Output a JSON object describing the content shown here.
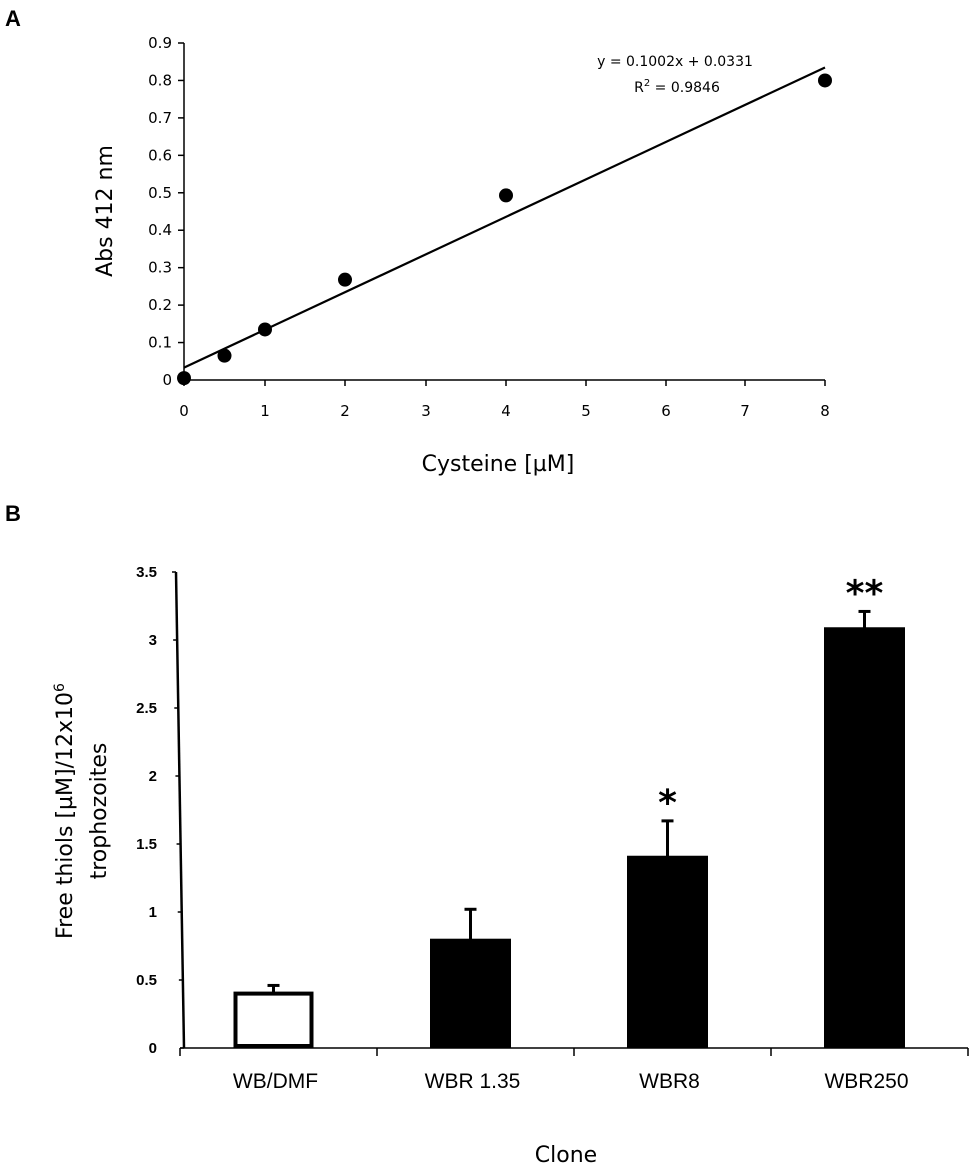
{
  "panel_a": {
    "letter": "A",
    "equation": "y = 0.1002x + 0.0331",
    "r2_prefix": "R",
    "r2_sup": "2",
    "r2_value": " = 0.9846"
  },
  "panel_b": {
    "letter": "B",
    "ylabel_line1_prefix": "Free thiols [µM]/12x10",
    "ylabel_line1_sup": "6",
    "ylabel_line2": "trophozoites"
  },
  "chart_data": [
    {
      "type": "scatter",
      "title": "",
      "xlabel": "Cysteine [µM]",
      "ylabel": "Abs 412 nm",
      "x_ticks": [
        "0",
        "1",
        "2",
        "3",
        "4",
        "5",
        "6",
        "7",
        "8"
      ],
      "y_ticks": [
        "0",
        "0.1",
        "0.2",
        "0.3",
        "0.4",
        "0.5",
        "0.6",
        "0.7",
        "0.8",
        "0.9"
      ],
      "xlim": [
        0,
        8
      ],
      "ylim": [
        0,
        0.9
      ],
      "points": [
        {
          "x": 0,
          "y": 0.005
        },
        {
          "x": 0.5,
          "y": 0.065
        },
        {
          "x": 1,
          "y": 0.135
        },
        {
          "x": 2,
          "y": 0.268
        },
        {
          "x": 4,
          "y": 0.493
        },
        {
          "x": 8,
          "y": 0.8
        }
      ],
      "trendline": {
        "slope": 0.1002,
        "intercept": 0.0331,
        "x_start": 0,
        "x_end": 8,
        "equation": "y = 0.1002x + 0.0331",
        "r2": 0.9846
      }
    },
    {
      "type": "bar",
      "title": "",
      "xlabel": "Clone",
      "ylabel": "Free thiols [µM]/12x10^6 trophozoites",
      "categories": [
        "WB/DMF",
        "WBR 1.35",
        "WBR8",
        "WBR250"
      ],
      "values": [
        0.4,
        0.8,
        1.41,
        3.09
      ],
      "errors": [
        0.06,
        0.22,
        0.26,
        0.12
      ],
      "fills": [
        "#ffffff",
        "#000000",
        "#000000",
        "#000000"
      ],
      "significance": [
        "",
        "",
        "*",
        "**"
      ],
      "y_ticks": [
        "0",
        "0.5",
        "1",
        "1.5",
        "2",
        "2.5",
        "3",
        "3.5"
      ],
      "ylim": [
        0,
        3.5
      ]
    }
  ]
}
